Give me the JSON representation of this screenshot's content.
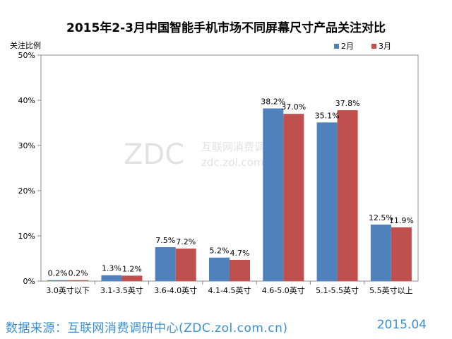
{
  "chart_data": {
    "type": "bar",
    "title": "2015年2-3月中国智能手机市场不同屏幕尺寸产品关注对比",
    "ylabel": "关注比例",
    "xlabel": "",
    "ylim": [
      0,
      50
    ],
    "yticks": [
      "0%",
      "10%",
      "20%",
      "30%",
      "40%",
      "50%"
    ],
    "grid": false,
    "legend_position": "top-right",
    "categories": [
      "3.0英寸以下",
      "3.1-3.5英寸",
      "3.6-4.0英寸",
      "4.1-4.5英寸",
      "4.6-5.0英寸",
      "5.1-5.5英寸",
      "5.5英寸以上"
    ],
    "series": [
      {
        "name": "2月",
        "color": "#4f81bd",
        "values": [
          0.2,
          1.3,
          7.5,
          5.2,
          38.2,
          35.1,
          12.5
        ],
        "labels": [
          "0.2%",
          "1.3%",
          "7.5%",
          "5.2%",
          "38.2%",
          "35.1%",
          "12.5%"
        ]
      },
      {
        "name": "3月",
        "color": "#c0504d",
        "values": [
          0.2,
          1.2,
          7.2,
          4.7,
          37.0,
          37.8,
          11.9
        ],
        "labels": [
          "0.2%",
          "1.2%",
          "7.2%",
          "4.7%",
          "37.0%",
          "37.8%",
          "11.9%"
        ]
      }
    ]
  },
  "watermark": {
    "logo": "ZDC",
    "cn": "互联网消费调研中心",
    "url": "zdc.zol.com.cn"
  },
  "footer": {
    "source": "数据来源：互联网消费调研中心(ZDC.zol.com.cn)",
    "date": "2015.04"
  }
}
